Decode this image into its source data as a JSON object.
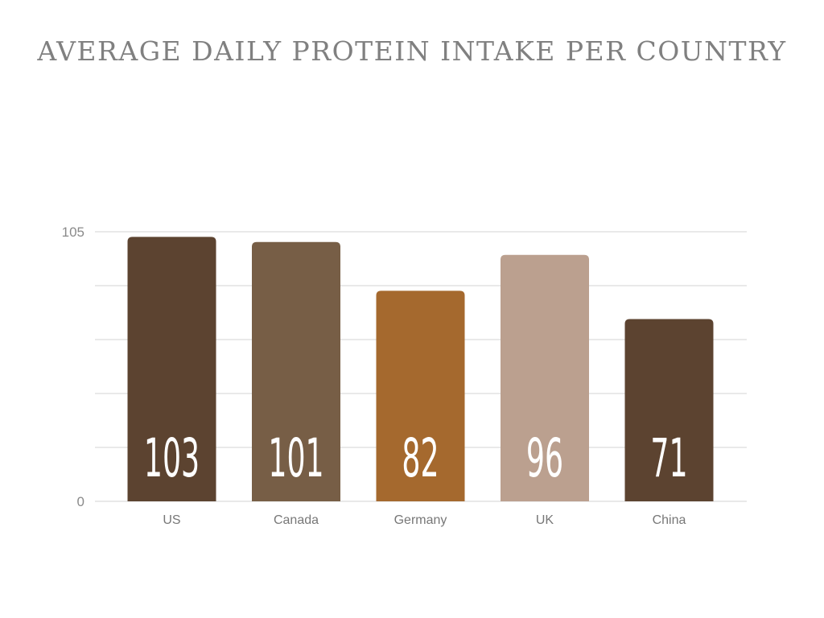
{
  "chart_data": {
    "type": "bar",
    "title": "AVERAGE DAILY PROTEIN INTAKE PER COUNTRY",
    "categories": [
      "US",
      "Canada",
      "Germany",
      "UK",
      "China"
    ],
    "values": [
      103,
      101,
      82,
      96,
      71
    ],
    "ylim": [
      0,
      105
    ],
    "yticks": [
      "0",
      "105"
    ],
    "grid": true,
    "legend": "none",
    "colors": [
      "#5c4330",
      "#775e46",
      "#a5692e",
      "#bba08f",
      "#5c4330"
    ],
    "gridline_color": "#dcdcdc"
  }
}
